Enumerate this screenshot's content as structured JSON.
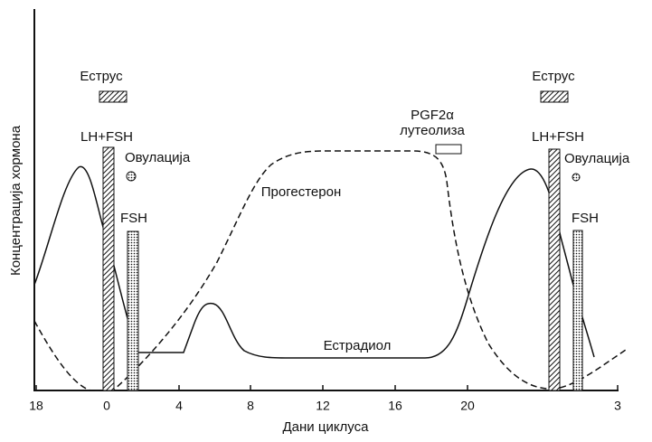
{
  "y_axis_label": "Концентрација хормона",
  "x_axis_label": "Дани циклуса",
  "x_ticks": [
    "18",
    "0",
    "4",
    "8",
    "12",
    "16",
    "20",
    "3"
  ],
  "left_labels": {
    "estrus": "Еструс",
    "lh_fsh": "LH+FSH",
    "ovulation": "Овулација",
    "fsh": "FSH"
  },
  "right_labels": {
    "estrus": "Еструс",
    "lh_fsh": "LH+FSH",
    "ovulation": "Овулација",
    "fsh": "FSH"
  },
  "pgf": {
    "line1": "PGF2α",
    "line2": "лутеолиза"
  },
  "curves": {
    "progesterone": "Прогестерон",
    "estradiol": "Естрадиол"
  }
}
